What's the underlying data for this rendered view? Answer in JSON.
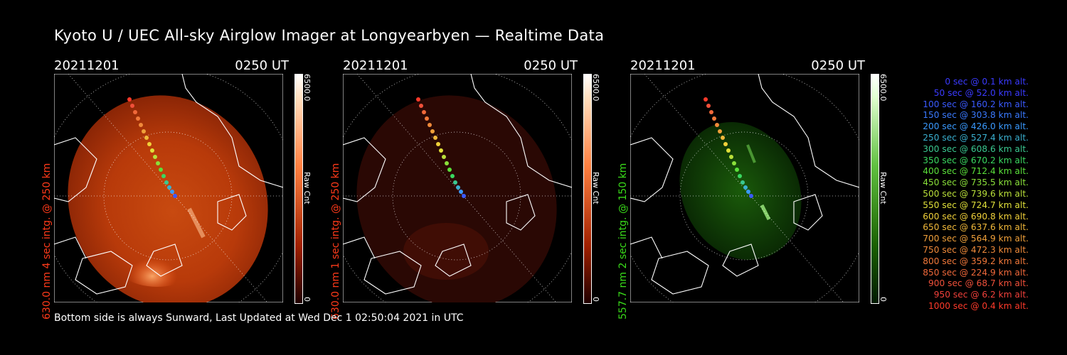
{
  "title": "Kyoto U / UEC All-sky Airglow Imager at Longyearbyen — Realtime Data",
  "footer": "Bottom side is always Sunward, Last Updated at Wed Dec  1 02:50:04 2021 in UTC",
  "panels": [
    {
      "date": "20211201",
      "time": "0250 UT",
      "side_label": "630.0 nm 4 sec intg. @ 250 km",
      "side_color": "#ff3a1a",
      "cbar_max": "6500.0",
      "cbar_unit": "Raw Cnt",
      "cbar_min": "0"
    },
    {
      "date": "20211201",
      "time": "0250 UT",
      "side_label": "630.0 nm 1 sec intg. @ 250 km",
      "side_color": "#ff3a1a",
      "cbar_max": "6500.0",
      "cbar_unit": "Raw Cnt",
      "cbar_min": "0"
    },
    {
      "date": "20211201",
      "time": "0250 UT",
      "side_label": "557.7 nm 2 sec intg. @ 150 km",
      "side_color": "#3adc1a",
      "cbar_max": "6500.0",
      "cbar_unit": "Raw Cnt",
      "cbar_min": "0"
    }
  ],
  "legend": [
    {
      "text": "0 sec @   0.1 km alt.",
      "color": "#3a3aff"
    },
    {
      "text": "50 sec @  52.0 km alt.",
      "color": "#3a3aff"
    },
    {
      "text": "100 sec @ 160.2 km alt.",
      "color": "#3a5aff"
    },
    {
      "text": "150 sec @ 303.8 km alt.",
      "color": "#3a7aff"
    },
    {
      "text": "200 sec @ 426.0 km alt.",
      "color": "#3a9aff"
    },
    {
      "text": "250 sec @ 527.4 km alt.",
      "color": "#3ab0d0"
    },
    {
      "text": "300 sec @ 608.6 km alt.",
      "color": "#3ac890"
    },
    {
      "text": "350 sec @ 670.2 km alt.",
      "color": "#3ad860"
    },
    {
      "text": "400 sec @ 712.4 km alt.",
      "color": "#5ae03a"
    },
    {
      "text": "450 sec @ 735.5 km alt.",
      "color": "#8ae03a"
    },
    {
      "text": "500 sec @ 739.6 km alt.",
      "color": "#bae03a"
    },
    {
      "text": "550 sec @ 724.7 km alt.",
      "color": "#e0e03a"
    },
    {
      "text": "600 sec @ 690.8 km alt.",
      "color": "#f0d03a"
    },
    {
      "text": "650 sec @ 637.6 km alt.",
      "color": "#f0b83a"
    },
    {
      "text": "700 sec @ 564.9 km alt.",
      "color": "#f0a03a"
    },
    {
      "text": "750 sec @ 472.3 km alt.",
      "color": "#f08a3a"
    },
    {
      "text": "800 sec @ 359.2 km alt.",
      "color": "#f0783a"
    },
    {
      "text": "850 sec @ 224.9 km alt.",
      "color": "#f0683a"
    },
    {
      "text": "900 sec @  68.7 km alt.",
      "color": "#f0503a"
    },
    {
      "text": "950 sec @   6.2 km alt.",
      "color": "#f0403a"
    },
    {
      "text": "1000 sec @   0.4 km alt.",
      "color": "#ff3a2a"
    }
  ]
}
